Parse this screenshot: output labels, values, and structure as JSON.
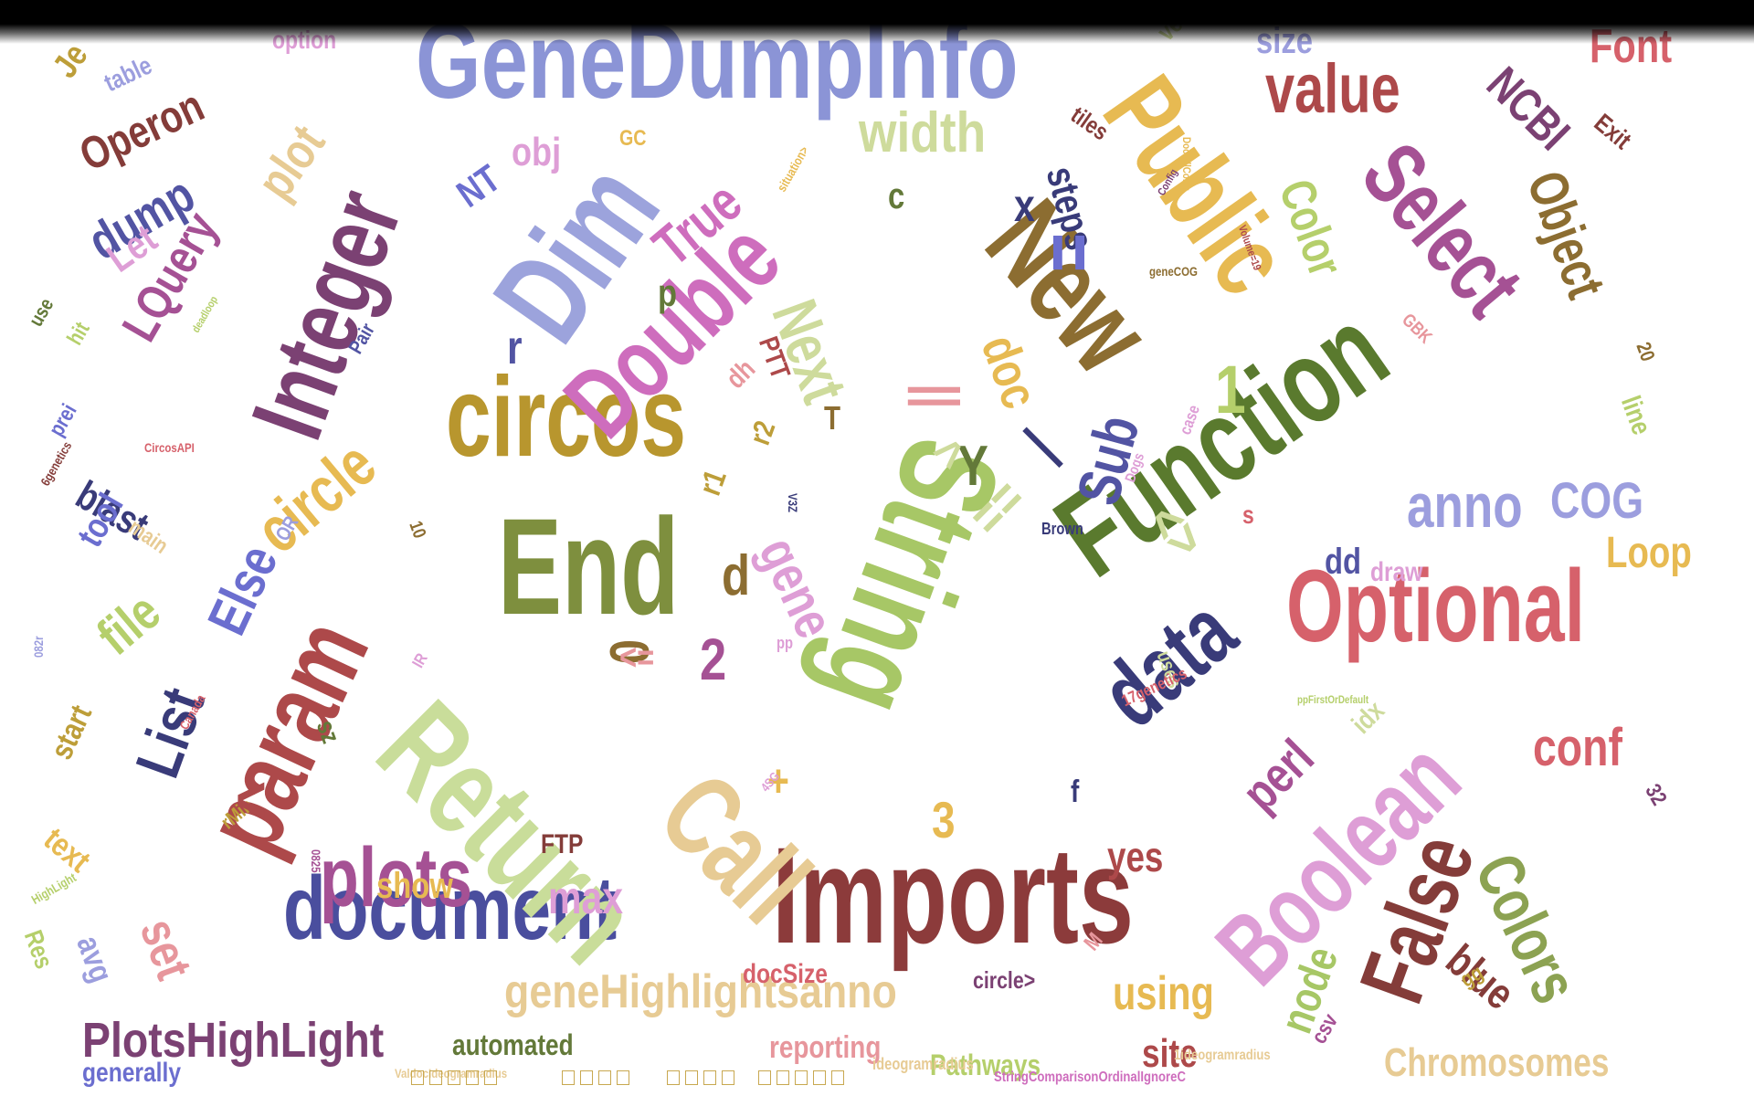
{
  "words": [
    {
      "text": "GeneDumpInfo",
      "color": "#8b94d6"
    },
    {
      "text": "Function",
      "color": "#5a7a2e"
    },
    {
      "text": "Imports",
      "color": "#8c3b3b"
    },
    {
      "text": "document",
      "color": "#4a4e9e"
    },
    {
      "text": "End",
      "color": "#7e8f3e"
    },
    {
      "text": "circos",
      "color": "#b8962e"
    },
    {
      "text": "String",
      "color": "#a7c766"
    },
    {
      "text": "Return",
      "color": "#c9dd9a"
    },
    {
      "text": "Optional",
      "color": "#d6616b"
    },
    {
      "text": "Public",
      "color": "#e7ba52"
    },
    {
      "text": "New",
      "color": "#8c6d31"
    },
    {
      "text": "Dim",
      "color": "#9ca3dc"
    },
    {
      "text": "Integer",
      "color": "#7b4173"
    },
    {
      "text": "Double",
      "color": "#ce6dbd"
    },
    {
      "text": "Boolean",
      "color": "#de9ed6"
    },
    {
      "text": "Call",
      "color": "#e7cb94"
    },
    {
      "text": "param",
      "color": "#ad494a"
    },
    {
      "text": "Select",
      "color": "#a55194"
    },
    {
      "text": "data",
      "color": "#393b79"
    },
    {
      "text": "plots",
      "color": "#a55194"
    },
    {
      "text": "False",
      "color": "#843c39"
    },
    {
      "text": "Colors",
      "color": "#8ca252"
    },
    {
      "text": "value",
      "color": "#ad494a"
    },
    {
      "text": "Next",
      "color": "#cedb9c"
    },
    {
      "text": "PlotsHighLight",
      "color": "#7b4173"
    },
    {
      "text": "geneHighlightsanno",
      "color": "#e7cb94"
    },
    {
      "text": "width",
      "color": "#cedb9c"
    },
    {
      "text": "circle",
      "color": "#e7ba52"
    },
    {
      "text": "Operon",
      "color": "#843c39"
    },
    {
      "text": "Object",
      "color": "#8c6d31"
    },
    {
      "text": "anno",
      "color": "#9c9ede"
    },
    {
      "text": "Color",
      "color": "#b5cf6b"
    },
    {
      "text": "True",
      "color": "#ce6dbd"
    },
    {
      "text": "LQuery",
      "color": "#a55194"
    },
    {
      "text": "Else",
      "color": "#6b6ecf"
    },
    {
      "text": "List",
      "color": "#393b79"
    },
    {
      "text": "file",
      "color": "#b5cf6b"
    },
    {
      "text": "NCBI",
      "color": "#7b4173"
    },
    {
      "text": "plot",
      "color": "#e7cb94"
    },
    {
      "text": "gene",
      "color": "#de9ed6"
    },
    {
      "text": "dump",
      "color": "#5254a3"
    },
    {
      "text": "Sub",
      "color": "#5254a3"
    },
    {
      "text": "doc",
      "color": "#e7ba52"
    },
    {
      "text": "steps",
      "color": "#393b79"
    },
    {
      "text": "conf",
      "color": "#d6616b"
    },
    {
      "text": "set",
      "color": "#e7969c"
    },
    {
      "text": "perl",
      "color": "#a55194"
    },
    {
      "text": "using",
      "color": "#e7ba52"
    },
    {
      "text": "Loop",
      "color": "#e7ba52"
    },
    {
      "text": "COG",
      "color": "#9c9ede"
    },
    {
      "text": "node",
      "color": "#a7c766"
    },
    {
      "text": "blue",
      "color": "#843c39"
    },
    {
      "text": "Chromosomes",
      "color": "#e7cb94"
    },
    {
      "text": "max",
      "color": "#de9ed6"
    },
    {
      "text": "blast",
      "color": "#393b79"
    },
    {
      "text": "tool",
      "color": "#6b6ecf"
    },
    {
      "text": "yes",
      "color": "#ad494a"
    },
    {
      "text": "site",
      "color": "#ad494a"
    },
    {
      "text": "automated",
      "color": "#637939"
    },
    {
      "text": "reporting",
      "color": "#e7969c"
    },
    {
      "text": "Pathways",
      "color": "#b5cf6b"
    },
    {
      "text": "generally",
      "color": "#6b6ecf"
    },
    {
      "text": "docSize",
      "color": "#d6616b"
    },
    {
      "text": "circle>",
      "color": "#7b4173"
    },
    {
      "text": "show",
      "color": "#e7ba52"
    },
    {
      "text": "FTP",
      "color": "#843c39"
    },
    {
      "text": "text",
      "color": "#e7ba52"
    },
    {
      "text": "start",
      "color": "#bd9e39"
    },
    {
      "text": "Let",
      "color": "#de9ed6"
    },
    {
      "text": "obj",
      "color": "#de9ed6"
    },
    {
      "text": "NT",
      "color": "#6b6ecf"
    },
    {
      "text": "Font",
      "color": "#d6616b"
    },
    {
      "text": "Exit",
      "color": "#843c39"
    },
    {
      "text": "size",
      "color": "#9c9ede"
    },
    {
      "text": "vector",
      "color": "#cedb9c"
    },
    {
      "text": "tiles",
      "color": "#843c39"
    },
    {
      "text": "option",
      "color": "#de9ed6"
    },
    {
      "text": "table",
      "color": "#9c9ede"
    },
    {
      "text": "Je",
      "color": "#bd9e39"
    },
    {
      "text": "dd",
      "color": "#5254a3"
    },
    {
      "text": "draw",
      "color": "#de9ed6"
    },
    {
      "text": "idx",
      "color": "#cedb9c"
    },
    {
      "text": "line",
      "color": "#b5cf6b"
    },
    {
      "text": "20",
      "color": "#8c6d31"
    },
    {
      "text": "32",
      "color": "#7b4173"
    },
    {
      "text": "gg",
      "color": "#bd9e39"
    },
    {
      "text": "csv",
      "color": "#a55194"
    },
    {
      "text": "M",
      "color": "#e7969c"
    },
    {
      "text": "Res",
      "color": "#b5cf6b"
    },
    {
      "text": "avg",
      "color": "#9c9ede"
    },
    {
      "text": "main",
      "color": "#e7cb94"
    },
    {
      "text": "hit",
      "color": "#b5cf6b"
    },
    {
      "text": "prei",
      "color": "#6b6ecf"
    },
    {
      "text": "use",
      "color": "#637939"
    },
    {
      "text": "Pair",
      "color": "#5254a3"
    },
    {
      "text": "OR",
      "color": "#9c9ede"
    },
    {
      "text": "10",
      "color": "#8c6d31"
    },
    {
      "text": "GC",
      "color": "#e7ba52"
    },
    {
      "text": "PTT",
      "color": "#ad494a"
    },
    {
      "text": "dh",
      "color": "#e7969c"
    },
    {
      "text": "r1",
      "color": "#bd9e39"
    },
    {
      "text": "r2",
      "color": "#bd9e39"
    },
    {
      "text": "rMin",
      "color": "#bd9e39"
    },
    {
      "text": "sz",
      "color": "#637939"
    },
    {
      "text": "uses",
      "color": "#cedb9c"
    },
    {
      "text": "GBK",
      "color": "#e7969c"
    },
    {
      "text": "Brown",
      "color": "#393b79"
    },
    {
      "text": "x",
      "color": "#393b79"
    },
    {
      "text": "c",
      "color": "#637939"
    },
    {
      "text": "Y",
      "color": "#637939"
    },
    {
      "text": "r",
      "color": "#5254a3"
    },
    {
      "text": "d",
      "color": "#8c6d31"
    },
    {
      "text": "2",
      "color": "#a55194"
    },
    {
      "text": "0",
      "color": "#8c6d31"
    },
    {
      "text": "p",
      "color": "#637939"
    },
    {
      "text": "s",
      "color": "#d6616b"
    },
    {
      "text": "f",
      "color": "#393b79"
    },
    {
      "text": "1",
      "color": "#b5cf6b"
    },
    {
      "text": "3",
      "color": "#e7ba52"
    },
    {
      "text": "T",
      "color": "#8c6d31"
    },
    {
      "text": "+",
      "color": "#e7ba52"
    },
    {
      "text": "<",
      "color": "#ad494a"
    },
    {
      "text": "<=",
      "color": "#e7969c"
    },
    {
      "text": "=",
      "color": "#6b6ecf"
    },
    {
      "text": "==",
      "color": "#cedb9c"
    },
    {
      "text": "|",
      "color": "#393b79"
    },
    {
      "text": "||",
      "color": "#e7969c"
    },
    {
      "text": "<>",
      "color": "#cedb9c"
    },
    {
      "text": "^",
      "color": "#cedb9c"
    },
    {
      "text": "pp",
      "color": "#de9ed6"
    },
    {
      "text": "case",
      "color": "#de9ed6"
    },
    {
      "text": "Dogs",
      "color": "#de9ed6"
    },
    {
      "text": "17genetics",
      "color": "#d6616b"
    },
    {
      "text": "6genetics",
      "color": "#843c39"
    },
    {
      "text": "CircosAPI",
      "color": "#d6616b"
    },
    {
      "text": "Canada",
      "color": "#d6616b"
    },
    {
      "text": "HighLight",
      "color": "#b5cf6b"
    },
    {
      "text": "0825",
      "color": "#a55194"
    },
    {
      "text": "082r",
      "color": "#9c9ede"
    },
    {
      "text": "4SG",
      "color": "#de9ed6"
    },
    {
      "text": "V3Z",
      "color": "#393b79"
    },
    {
      "text": "IR",
      "color": "#de9ed6"
    },
    {
      "text": "deadloop",
      "color": "#b5cf6b"
    },
    {
      "text": "situation>",
      "color": "#e7ba52"
    },
    {
      "text": "Config",
      "color": "#7b4173"
    },
    {
      "text": "geneCOG",
      "color": "#8c6d31"
    },
    {
      "text": "DocFillColor",
      "color": "#e7ba52"
    },
    {
      "text": "Volume=19",
      "color": "#ad494a"
    },
    {
      "text": "ppFirstOrDefault",
      "color": "#b5cf6b"
    },
    {
      "text": "ideogramradius",
      "color": "#e7cb94"
    },
    {
      "text": "1ideogramradius",
      "color": "#e7cb94"
    },
    {
      "text": "ValdocIdeogramradius",
      "color": "#e7cb94"
    },
    {
      "text": "StringComparisonOrdinalIgnoreC",
      "color": "#ce6dbd"
    }
  ]
}
